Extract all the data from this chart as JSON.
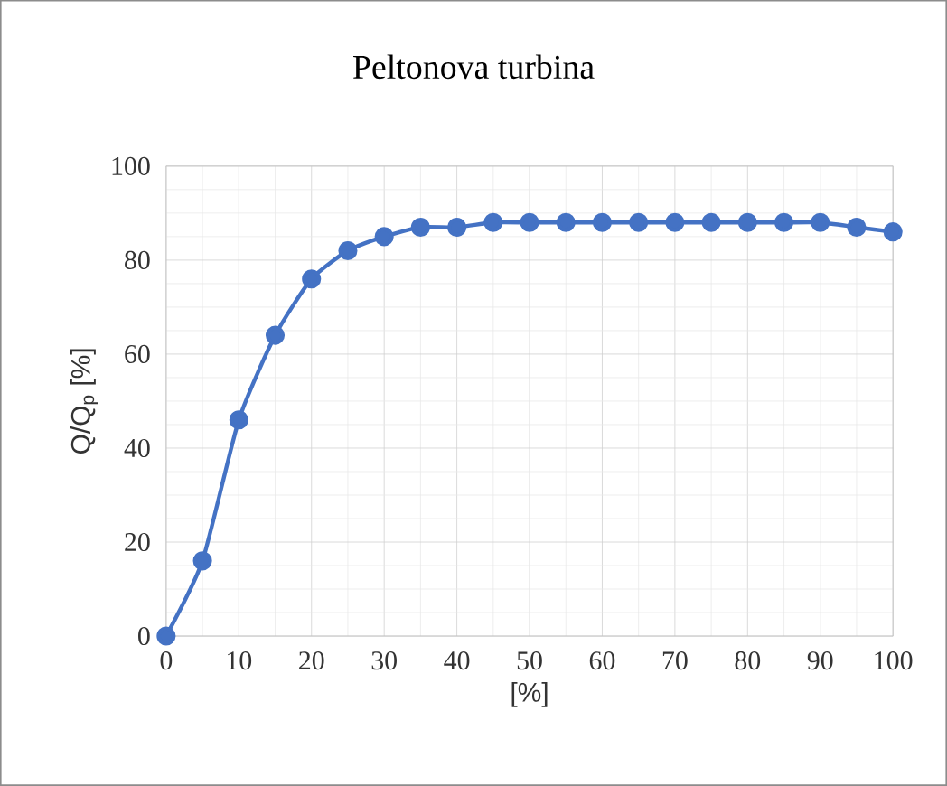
{
  "chart_data": {
    "type": "line",
    "title": "Peltonova turbina",
    "xlabel": "[%]",
    "ylabel": "Q/Q$_{p}$ [%]",
    "x": [
      0,
      5,
      10,
      15,
      20,
      25,
      30,
      35,
      40,
      45,
      50,
      55,
      60,
      65,
      70,
      75,
      80,
      85,
      90,
      95,
      100
    ],
    "series": [
      {
        "color": "#4472c4",
        "values": [
          0,
          16,
          46,
          64,
          76,
          82,
          85,
          87,
          87,
          88,
          88,
          88,
          88,
          88,
          88,
          88,
          88,
          88,
          88,
          87,
          86
        ]
      }
    ],
    "xlim": [
      0,
      100
    ],
    "ylim": [
      0,
      100
    ],
    "xticks": [
      0,
      10,
      20,
      30,
      40,
      50,
      60,
      70,
      80,
      90,
      100
    ],
    "yticks": [
      0,
      20,
      40,
      60,
      80,
      100
    ],
    "grid": true,
    "marker": "circle",
    "line_style": "solid"
  }
}
